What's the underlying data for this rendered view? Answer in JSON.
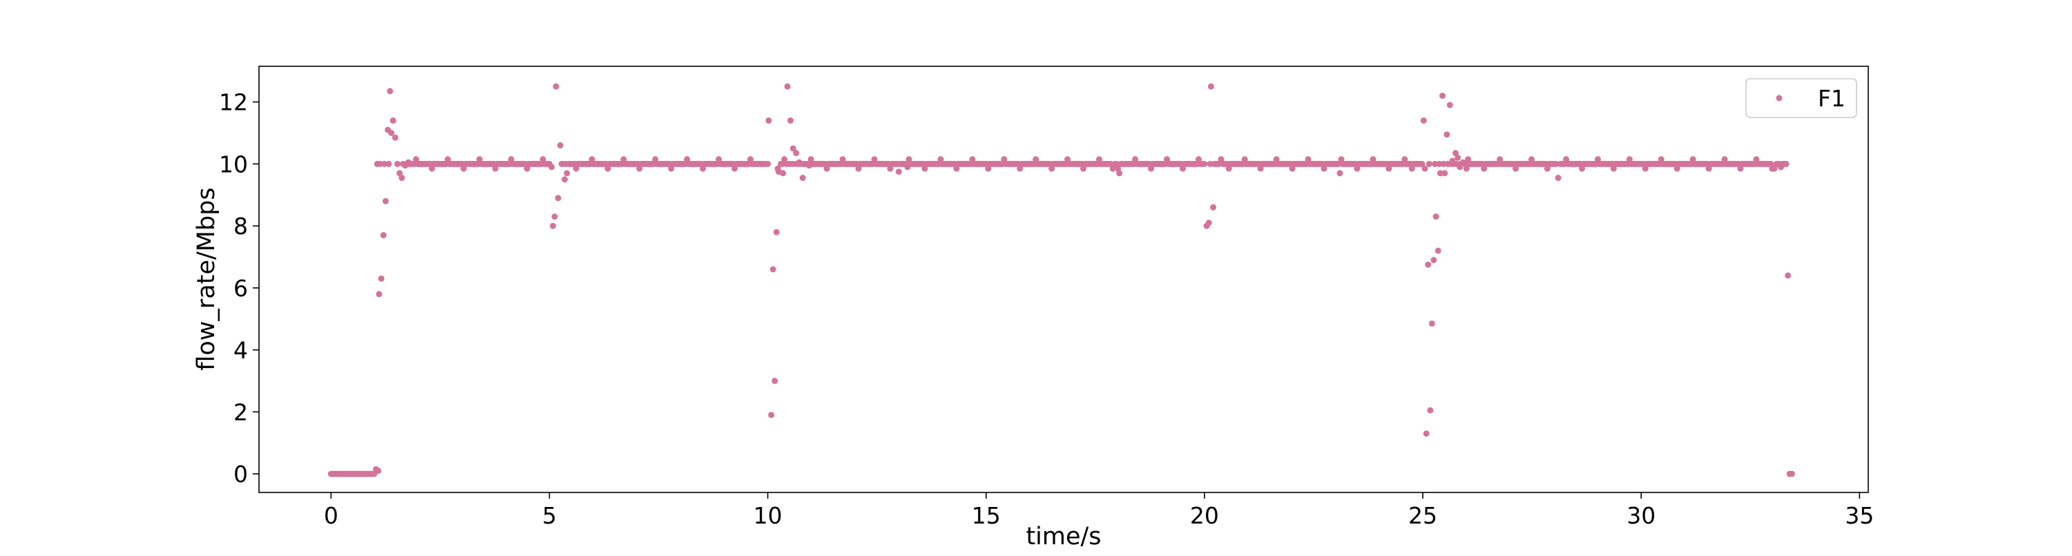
{
  "chart_data": {
    "type": "scatter",
    "xlabel": "time/s",
    "ylabel": "flow_rate/Mbps",
    "xlim": [
      -1.65,
      35.2
    ],
    "ylim": [
      -0.6,
      13.15
    ],
    "xticks": [
      0,
      5,
      10,
      15,
      20,
      25,
      30,
      35
    ],
    "yticks": [
      0,
      2,
      4,
      6,
      8,
      10,
      12
    ],
    "grid": false,
    "legend_position": "top-right",
    "colors": {
      "series": "#d4739a",
      "axis": "#000000"
    },
    "series": [
      {
        "name": "F1",
        "pattern": {
          "interval_s": 0.033,
          "steady_value": 10.0,
          "idle_value": 0.0,
          "idle_until_s": 1.05,
          "end_s": 33.35,
          "steady_scatter_values": [
            9.85,
            10.15
          ]
        },
        "points": [
          [
            0.0,
            0.0
          ],
          [
            0.7,
            0.0
          ],
          [
            0.95,
            0.0
          ],
          [
            1.03,
            0.15
          ],
          [
            1.08,
            0.1
          ],
          [
            1.1,
            5.8
          ],
          [
            1.15,
            6.3
          ],
          [
            1.2,
            7.7
          ],
          [
            1.25,
            8.8
          ],
          [
            1.3,
            11.1
          ],
          [
            1.35,
            12.35
          ],
          [
            1.38,
            11.0
          ],
          [
            1.42,
            11.4
          ],
          [
            1.47,
            10.85
          ],
          [
            1.52,
            10.0
          ],
          [
            1.57,
            9.7
          ],
          [
            1.62,
            9.55
          ],
          [
            1.7,
            9.95
          ],
          [
            1.77,
            10.05
          ],
          [
            5.0,
            10.0
          ],
          [
            5.05,
            9.9
          ],
          [
            5.08,
            8.0
          ],
          [
            5.12,
            8.3
          ],
          [
            5.15,
            12.5
          ],
          [
            5.2,
            8.9
          ],
          [
            5.25,
            10.6
          ],
          [
            5.35,
            9.5
          ],
          [
            5.4,
            9.7
          ],
          [
            5.48,
            10.0
          ],
          [
            9.95,
            10.0
          ],
          [
            10.02,
            11.4
          ],
          [
            10.08,
            1.9
          ],
          [
            10.12,
            6.6
          ],
          [
            10.16,
            3.0
          ],
          [
            10.2,
            7.8
          ],
          [
            10.25,
            9.75
          ],
          [
            10.3,
            10.0
          ],
          [
            10.35,
            9.7
          ],
          [
            10.38,
            10.15
          ],
          [
            10.45,
            12.5
          ],
          [
            10.52,
            11.4
          ],
          [
            10.58,
            10.5
          ],
          [
            10.65,
            10.35
          ],
          [
            10.72,
            10.05
          ],
          [
            10.8,
            9.55
          ],
          [
            10.88,
            10.0
          ],
          [
            10.95,
            9.95
          ],
          [
            13.0,
            9.75
          ],
          [
            13.2,
            9.9
          ],
          [
            17.9,
            9.85
          ],
          [
            18.05,
            9.7
          ],
          [
            19.95,
            10.0
          ],
          [
            20.05,
            8.0
          ],
          [
            20.1,
            8.1
          ],
          [
            20.15,
            12.5
          ],
          [
            20.2,
            8.6
          ],
          [
            20.3,
            10.0
          ],
          [
            20.38,
            10.15
          ],
          [
            23.1,
            9.7
          ],
          [
            24.75,
            9.85
          ],
          [
            24.95,
            10.0
          ],
          [
            25.02,
            11.4
          ],
          [
            25.08,
            1.3
          ],
          [
            25.12,
            6.75
          ],
          [
            25.17,
            2.05
          ],
          [
            25.21,
            4.85
          ],
          [
            25.25,
            6.9
          ],
          [
            25.3,
            8.3
          ],
          [
            25.35,
            7.2
          ],
          [
            25.4,
            9.7
          ],
          [
            25.45,
            12.2
          ],
          [
            25.5,
            9.7
          ],
          [
            25.55,
            10.95
          ],
          [
            25.62,
            11.9
          ],
          [
            25.68,
            10.1
          ],
          [
            25.75,
            10.35
          ],
          [
            25.8,
            10.2
          ],
          [
            25.85,
            9.9
          ],
          [
            25.92,
            10.05
          ],
          [
            26.0,
            9.85
          ],
          [
            28.1,
            9.55
          ],
          [
            33.05,
            9.85
          ],
          [
            33.2,
            9.9
          ],
          [
            33.32,
            10.0
          ],
          [
            33.36,
            6.4
          ],
          [
            33.4,
            0.0
          ],
          [
            33.45,
            0.0
          ]
        ]
      }
    ]
  }
}
